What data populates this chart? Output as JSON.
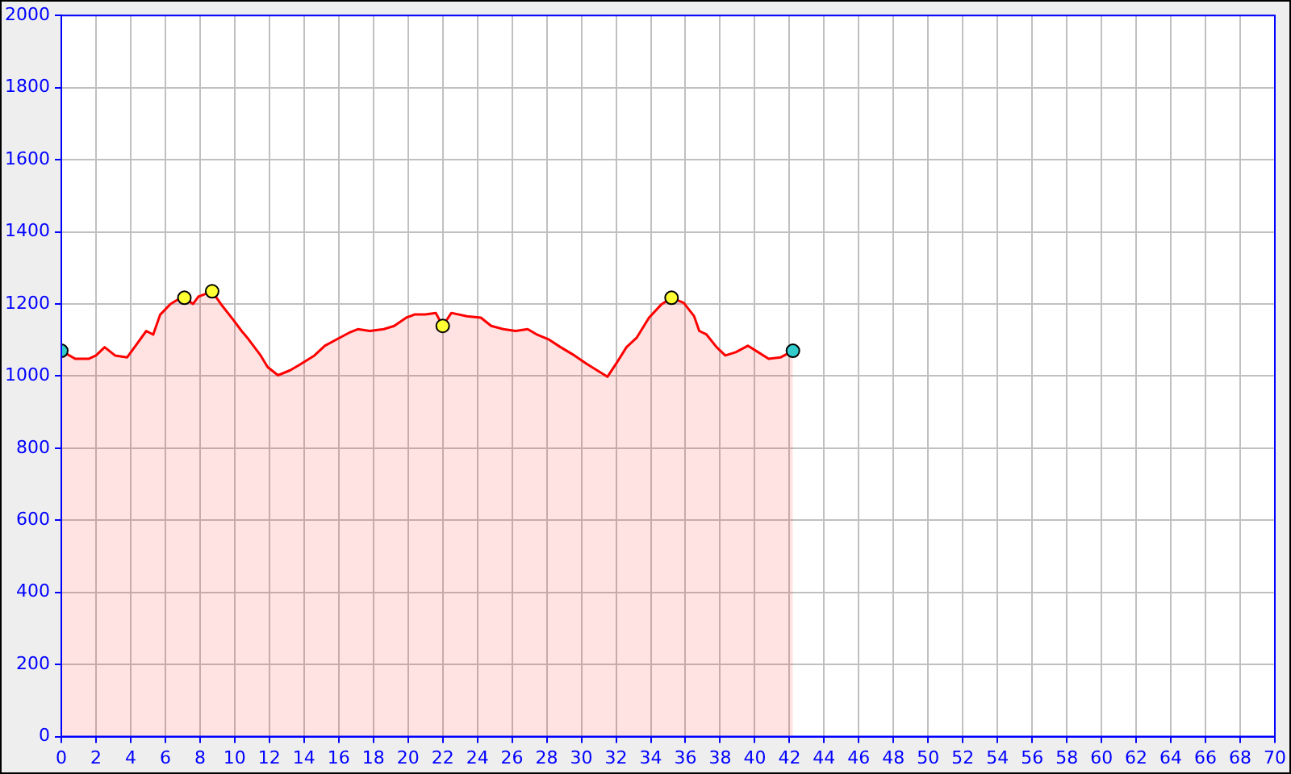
{
  "chart_data": {
    "type": "area",
    "xlim": [
      0,
      70
    ],
    "xticks": [
      0,
      2,
      4,
      6,
      8,
      10,
      12,
      14,
      16,
      18,
      20,
      22,
      24,
      26,
      28,
      30,
      32,
      34,
      36,
      38,
      40,
      42,
      44,
      46,
      48,
      50,
      52,
      54,
      56,
      58,
      60,
      62,
      64,
      66,
      68,
      70
    ],
    "ylim": [
      0,
      2000
    ],
    "yticks": [
      0,
      200,
      400,
      600,
      800,
      1000,
      1200,
      1400,
      1600,
      1800,
      2000
    ],
    "grid": true,
    "legend": false,
    "series": [
      {
        "color": "#ff0000",
        "marker": "none",
        "x": [
          0,
          0.8,
          1.6,
          2.0,
          2.5,
          3.1,
          3.8,
          4.3,
          4.9,
          5.3,
          5.7,
          6.3,
          7.0,
          7.6,
          7.9,
          8.7,
          9.2,
          9.9,
          10.4,
          10.8,
          11.5,
          11.9,
          12.5,
          13.2,
          13.7,
          14.6,
          15.2,
          15.9,
          16.6,
          17.1,
          17.8,
          18.6,
          19.2,
          19.9,
          20.4,
          21.0,
          21.6,
          22.0,
          22.5,
          23.4,
          24.2,
          24.8,
          25.5,
          26.2,
          26.9,
          27.4,
          28.1,
          28.8,
          29.6,
          30.3,
          30.9,
          31.5,
          32.0,
          32.6,
          33.2,
          33.9,
          34.6,
          35.2,
          35.9,
          36.5,
          36.8,
          37.2,
          37.8,
          38.3,
          38.9,
          39.6,
          40.2,
          40.8,
          41.5,
          42.2
        ],
        "values": [
          1070,
          1048,
          1048,
          1057,
          1080,
          1057,
          1052,
          1085,
          1125,
          1115,
          1170,
          1200,
          1220,
          1200,
          1220,
          1235,
          1200,
          1157,
          1125,
          1102,
          1057,
          1025,
          1002,
          1016,
          1030,
          1057,
          1084,
          1102,
          1120,
          1130,
          1125,
          1130,
          1139,
          1162,
          1171,
          1171,
          1175,
          1139,
          1175,
          1166,
          1162,
          1139,
          1130,
          1125,
          1130,
          1116,
          1102,
          1080,
          1057,
          1034,
          1016,
          998,
          1034,
          1080,
          1107,
          1162,
          1198,
          1217,
          1203,
          1166,
          1125,
          1116,
          1080,
          1057,
          1066,
          1084,
          1066,
          1048,
          1052,
          1070
        ]
      },
      {
        "type": "scatter",
        "marker": "circle",
        "x": [
          0,
          7.1,
          8.7,
          22.0,
          35.2,
          42.2
        ],
        "values": [
          1070,
          1217,
          1235,
          1139,
          1217,
          1070
        ],
        "colors": [
          "#33cccc",
          "#ffff33",
          "#ffff33",
          "#ffff33",
          "#ffff33",
          "#33cccc"
        ]
      }
    ]
  }
}
